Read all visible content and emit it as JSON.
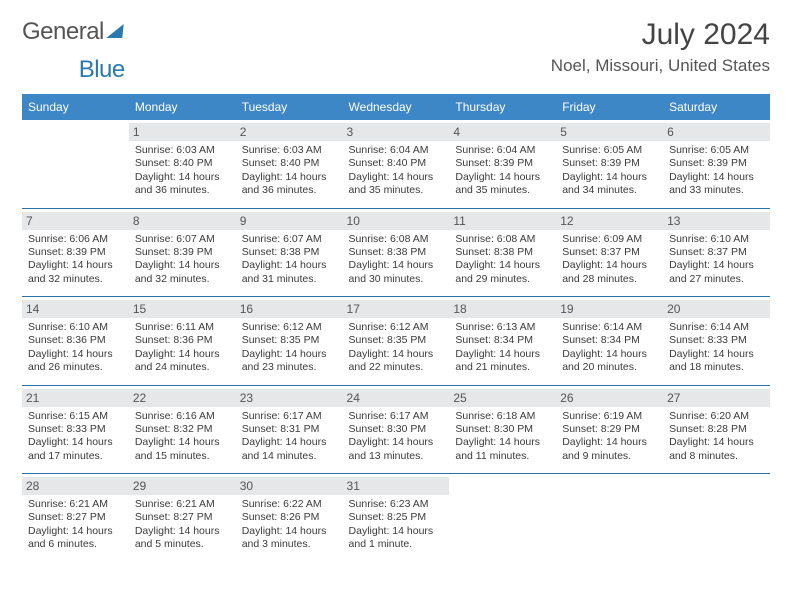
{
  "brand": {
    "part1": "General",
    "part2": "Blue"
  },
  "title": "July 2024",
  "location": "Noel, Missouri, United States",
  "weekdays": [
    "Sunday",
    "Monday",
    "Tuesday",
    "Wednesday",
    "Thursday",
    "Friday",
    "Saturday"
  ],
  "colors": {
    "header_bg": "#3d87c7",
    "header_text": "#ffffff",
    "daystrip_bg": "#e6e7e8",
    "rule": "#2f6fa5",
    "brand_blue": "#2a7ab0"
  },
  "weeks": [
    [
      null,
      {
        "n": "1",
        "sr": "Sunrise: 6:03 AM",
        "ss": "Sunset: 8:40 PM",
        "d1": "Daylight: 14 hours",
        "d2": "and 36 minutes."
      },
      {
        "n": "2",
        "sr": "Sunrise: 6:03 AM",
        "ss": "Sunset: 8:40 PM",
        "d1": "Daylight: 14 hours",
        "d2": "and 36 minutes."
      },
      {
        "n": "3",
        "sr": "Sunrise: 6:04 AM",
        "ss": "Sunset: 8:40 PM",
        "d1": "Daylight: 14 hours",
        "d2": "and 35 minutes."
      },
      {
        "n": "4",
        "sr": "Sunrise: 6:04 AM",
        "ss": "Sunset: 8:39 PM",
        "d1": "Daylight: 14 hours",
        "d2": "and 35 minutes."
      },
      {
        "n": "5",
        "sr": "Sunrise: 6:05 AM",
        "ss": "Sunset: 8:39 PM",
        "d1": "Daylight: 14 hours",
        "d2": "and 34 minutes."
      },
      {
        "n": "6",
        "sr": "Sunrise: 6:05 AM",
        "ss": "Sunset: 8:39 PM",
        "d1": "Daylight: 14 hours",
        "d2": "and 33 minutes."
      }
    ],
    [
      {
        "n": "7",
        "sr": "Sunrise: 6:06 AM",
        "ss": "Sunset: 8:39 PM",
        "d1": "Daylight: 14 hours",
        "d2": "and 32 minutes."
      },
      {
        "n": "8",
        "sr": "Sunrise: 6:07 AM",
        "ss": "Sunset: 8:39 PM",
        "d1": "Daylight: 14 hours",
        "d2": "and 32 minutes."
      },
      {
        "n": "9",
        "sr": "Sunrise: 6:07 AM",
        "ss": "Sunset: 8:38 PM",
        "d1": "Daylight: 14 hours",
        "d2": "and 31 minutes."
      },
      {
        "n": "10",
        "sr": "Sunrise: 6:08 AM",
        "ss": "Sunset: 8:38 PM",
        "d1": "Daylight: 14 hours",
        "d2": "and 30 minutes."
      },
      {
        "n": "11",
        "sr": "Sunrise: 6:08 AM",
        "ss": "Sunset: 8:38 PM",
        "d1": "Daylight: 14 hours",
        "d2": "and 29 minutes."
      },
      {
        "n": "12",
        "sr": "Sunrise: 6:09 AM",
        "ss": "Sunset: 8:37 PM",
        "d1": "Daylight: 14 hours",
        "d2": "and 28 minutes."
      },
      {
        "n": "13",
        "sr": "Sunrise: 6:10 AM",
        "ss": "Sunset: 8:37 PM",
        "d1": "Daylight: 14 hours",
        "d2": "and 27 minutes."
      }
    ],
    [
      {
        "n": "14",
        "sr": "Sunrise: 6:10 AM",
        "ss": "Sunset: 8:36 PM",
        "d1": "Daylight: 14 hours",
        "d2": "and 26 minutes."
      },
      {
        "n": "15",
        "sr": "Sunrise: 6:11 AM",
        "ss": "Sunset: 8:36 PM",
        "d1": "Daylight: 14 hours",
        "d2": "and 24 minutes."
      },
      {
        "n": "16",
        "sr": "Sunrise: 6:12 AM",
        "ss": "Sunset: 8:35 PM",
        "d1": "Daylight: 14 hours",
        "d2": "and 23 minutes."
      },
      {
        "n": "17",
        "sr": "Sunrise: 6:12 AM",
        "ss": "Sunset: 8:35 PM",
        "d1": "Daylight: 14 hours",
        "d2": "and 22 minutes."
      },
      {
        "n": "18",
        "sr": "Sunrise: 6:13 AM",
        "ss": "Sunset: 8:34 PM",
        "d1": "Daylight: 14 hours",
        "d2": "and 21 minutes."
      },
      {
        "n": "19",
        "sr": "Sunrise: 6:14 AM",
        "ss": "Sunset: 8:34 PM",
        "d1": "Daylight: 14 hours",
        "d2": "and 20 minutes."
      },
      {
        "n": "20",
        "sr": "Sunrise: 6:14 AM",
        "ss": "Sunset: 8:33 PM",
        "d1": "Daylight: 14 hours",
        "d2": "and 18 minutes."
      }
    ],
    [
      {
        "n": "21",
        "sr": "Sunrise: 6:15 AM",
        "ss": "Sunset: 8:33 PM",
        "d1": "Daylight: 14 hours",
        "d2": "and 17 minutes."
      },
      {
        "n": "22",
        "sr": "Sunrise: 6:16 AM",
        "ss": "Sunset: 8:32 PM",
        "d1": "Daylight: 14 hours",
        "d2": "and 15 minutes."
      },
      {
        "n": "23",
        "sr": "Sunrise: 6:17 AM",
        "ss": "Sunset: 8:31 PM",
        "d1": "Daylight: 14 hours",
        "d2": "and 14 minutes."
      },
      {
        "n": "24",
        "sr": "Sunrise: 6:17 AM",
        "ss": "Sunset: 8:30 PM",
        "d1": "Daylight: 14 hours",
        "d2": "and 13 minutes."
      },
      {
        "n": "25",
        "sr": "Sunrise: 6:18 AM",
        "ss": "Sunset: 8:30 PM",
        "d1": "Daylight: 14 hours",
        "d2": "and 11 minutes."
      },
      {
        "n": "26",
        "sr": "Sunrise: 6:19 AM",
        "ss": "Sunset: 8:29 PM",
        "d1": "Daylight: 14 hours",
        "d2": "and 9 minutes."
      },
      {
        "n": "27",
        "sr": "Sunrise: 6:20 AM",
        "ss": "Sunset: 8:28 PM",
        "d1": "Daylight: 14 hours",
        "d2": "and 8 minutes."
      }
    ],
    [
      {
        "n": "28",
        "sr": "Sunrise: 6:21 AM",
        "ss": "Sunset: 8:27 PM",
        "d1": "Daylight: 14 hours",
        "d2": "and 6 minutes."
      },
      {
        "n": "29",
        "sr": "Sunrise: 6:21 AM",
        "ss": "Sunset: 8:27 PM",
        "d1": "Daylight: 14 hours",
        "d2": "and 5 minutes."
      },
      {
        "n": "30",
        "sr": "Sunrise: 6:22 AM",
        "ss": "Sunset: 8:26 PM",
        "d1": "Daylight: 14 hours",
        "d2": "and 3 minutes."
      },
      {
        "n": "31",
        "sr": "Sunrise: 6:23 AM",
        "ss": "Sunset: 8:25 PM",
        "d1": "Daylight: 14 hours",
        "d2": "and 1 minute."
      },
      null,
      null,
      null
    ]
  ]
}
